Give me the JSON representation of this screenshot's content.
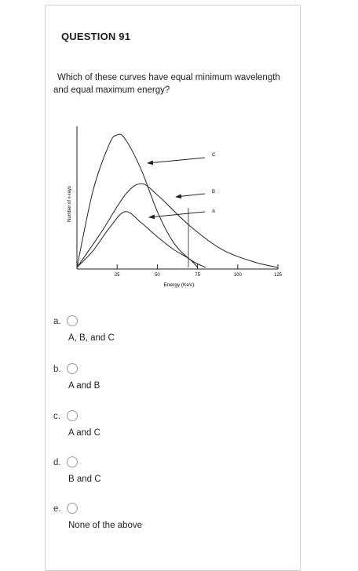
{
  "question": {
    "title": "QUESTION 91",
    "text_line1": "Which of these curves have equal minimum wavelength",
    "text_line2": "and equal maximum energy?"
  },
  "chart_data": {
    "type": "line",
    "ylabel": "Number of x-rays",
    "xlabel": "Energy (KeV)",
    "xticks": [
      "25",
      "50",
      "75",
      "100",
      "125"
    ],
    "xlim": [
      0,
      125
    ],
    "series": [
      {
        "name": "C",
        "x": [
          0,
          10,
          20,
          25,
          30,
          40,
          50,
          60,
          70,
          80
        ],
        "y": [
          0,
          55,
          88,
          95,
          92,
          70,
          40,
          18,
          6,
          0
        ]
      },
      {
        "name": "B",
        "x": [
          0,
          15,
          30,
          40,
          50,
          70,
          90,
          110,
          125
        ],
        "y": [
          0,
          25,
          52,
          60,
          52,
          30,
          13,
          4,
          0
        ]
      },
      {
        "name": "A",
        "x": [
          0,
          10,
          20,
          30,
          40,
          50,
          60,
          70,
          75
        ],
        "y": [
          0,
          12,
          28,
          40,
          32,
          22,
          13,
          6,
          0
        ]
      }
    ],
    "grid": false
  },
  "options": [
    {
      "letter": "a.",
      "text": "A, B, and C"
    },
    {
      "letter": "b.",
      "text": "A and B"
    },
    {
      "letter": "c.",
      "text": "A and C"
    },
    {
      "letter": "d.",
      "text": "B and C"
    },
    {
      "letter": "e.",
      "text": "None of the above"
    }
  ]
}
